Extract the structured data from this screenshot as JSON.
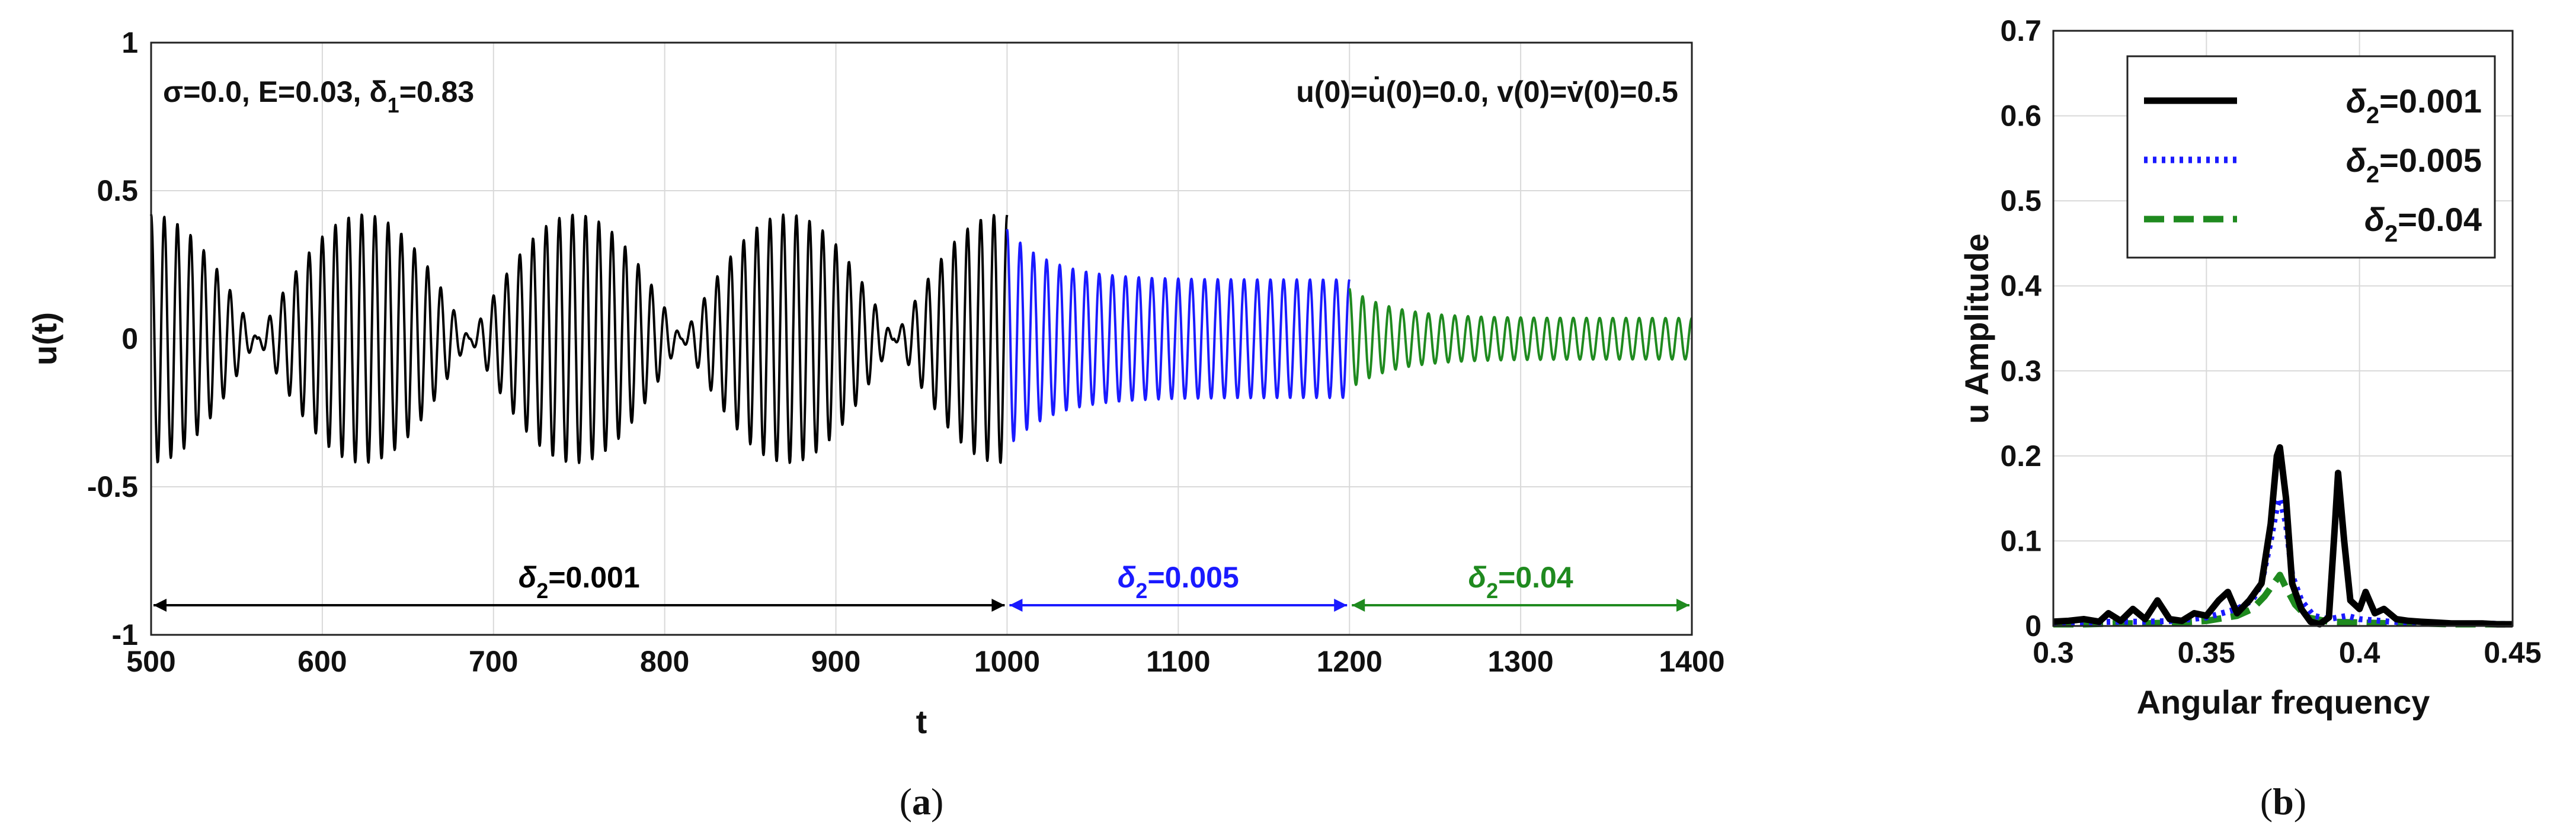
{
  "chart_data": [
    {
      "id": "a",
      "type": "line",
      "caption": "a",
      "xlabel": "t",
      "ylabel": "u(t)",
      "xlim": [
        500,
        1400
      ],
      "ylim": [
        -1,
        1
      ],
      "xticks": [
        "500",
        "600",
        "700",
        "800",
        "900",
        "1000",
        "1100",
        "1200",
        "1300",
        "1400"
      ],
      "yticks": [
        "1",
        "0.5",
        "0",
        "-0.5",
        "-1"
      ],
      "grid": true,
      "annotation_left": {
        "prefix": "σ=0.0, E=0.03, δ",
        "sub": "1",
        "suffix": "=0.83"
      },
      "annotation_right": {
        "text": "u(0)=u̇(0)=0.0, v(0)=v̇(0)=0.5"
      },
      "series": [
        {
          "name": "δ2=0.001",
          "color": "#000000",
          "t_start": 500,
          "t_end": 1000,
          "behavior": "beating",
          "max_amplitude": 0.42,
          "envelope_period": 124,
          "carrier_cycles_per_100": 13
        },
        {
          "name": "δ2=0.005",
          "color": "#1a1aff",
          "t_start": 1000,
          "t_end": 1200,
          "behavior": "decay",
          "start_amplitude": 0.37,
          "steady_amplitude": 0.2,
          "carrier_cycles_per_100": 13
        },
        {
          "name": "δ2=0.04",
          "color": "#1f8a1f",
          "t_start": 1200,
          "t_end": 1400,
          "behavior": "decay",
          "start_amplitude": 0.17,
          "steady_amplitude": 0.07,
          "carrier_cycles_per_100": 13
        }
      ],
      "intervals": [
        {
          "label_prefix": "δ",
          "sub": "2",
          "label_suffix": "=0.001",
          "from": 500,
          "to": 1000,
          "y": -0.9,
          "color": "#000000"
        },
        {
          "label_prefix": "δ",
          "sub": "2",
          "label_suffix": "=0.005",
          "from": 1000,
          "to": 1200,
          "y": -0.9,
          "color": "#1a1aff"
        },
        {
          "label_prefix": "δ",
          "sub": "2",
          "label_suffix": "=0.04",
          "from": 1200,
          "to": 1400,
          "y": -0.9,
          "color": "#1f8a1f"
        }
      ]
    },
    {
      "id": "b",
      "type": "line",
      "caption": "b",
      "xlabel": "Angular frequency",
      "ylabel": "u Amplitude",
      "xlim": [
        0.3,
        0.45
      ],
      "ylim": [
        0,
        0.7
      ],
      "xticks": [
        "0.3",
        "0.35",
        "0.4",
        "0.45"
      ],
      "yticks": [
        "0.7",
        "0.6",
        "0.5",
        "0.4",
        "0.3",
        "0.2",
        "0.1",
        "0"
      ],
      "grid": true,
      "legend_position": "top-right",
      "series": [
        {
          "name_prefix": "δ",
          "sub": "2",
          "name_suffix": "=0.001",
          "color": "#000000",
          "style": "solid",
          "x": [
            0.3,
            0.305,
            0.31,
            0.315,
            0.318,
            0.322,
            0.326,
            0.33,
            0.334,
            0.338,
            0.342,
            0.346,
            0.35,
            0.354,
            0.357,
            0.36,
            0.364,
            0.368,
            0.371,
            0.373,
            0.374,
            0.376,
            0.378,
            0.381,
            0.384,
            0.387,
            0.39,
            0.392,
            0.393,
            0.395,
            0.397,
            0.4,
            0.402,
            0.405,
            0.408,
            0.412,
            0.416,
            0.42,
            0.425,
            0.43,
            0.435,
            0.44,
            0.445,
            0.45
          ],
          "y": [
            0.005,
            0.006,
            0.008,
            0.005,
            0.015,
            0.006,
            0.02,
            0.008,
            0.03,
            0.008,
            0.006,
            0.015,
            0.012,
            0.03,
            0.04,
            0.015,
            0.03,
            0.05,
            0.12,
            0.2,
            0.21,
            0.15,
            0.05,
            0.02,
            0.005,
            0.002,
            0.01,
            0.12,
            0.18,
            0.1,
            0.03,
            0.02,
            0.04,
            0.015,
            0.02,
            0.008,
            0.006,
            0.005,
            0.004,
            0.003,
            0.003,
            0.003,
            0.002,
            0.002
          ]
        },
        {
          "name_prefix": "δ",
          "sub": "2",
          "name_suffix": "=0.005",
          "color": "#1a1aff",
          "style": "dotted",
          "x": [
            0.3,
            0.31,
            0.32,
            0.33,
            0.34,
            0.35,
            0.355,
            0.36,
            0.365,
            0.368,
            0.371,
            0.373,
            0.374,
            0.376,
            0.378,
            0.381,
            0.385,
            0.39,
            0.393,
            0.396,
            0.4,
            0.41,
            0.42,
            0.43,
            0.44,
            0.45
          ],
          "y": [
            0.004,
            0.004,
            0.005,
            0.005,
            0.006,
            0.01,
            0.015,
            0.02,
            0.03,
            0.05,
            0.1,
            0.14,
            0.15,
            0.12,
            0.06,
            0.03,
            0.012,
            0.008,
            0.01,
            0.012,
            0.008,
            0.005,
            0.004,
            0.003,
            0.003,
            0.002
          ]
        },
        {
          "name_prefix": "δ",
          "sub": "2",
          "name_suffix": "=0.04",
          "color": "#1f8a1f",
          "style": "dashed",
          "x": [
            0.3,
            0.31,
            0.32,
            0.33,
            0.34,
            0.35,
            0.36,
            0.365,
            0.369,
            0.372,
            0.374,
            0.376,
            0.379,
            0.383,
            0.39,
            0.4,
            0.41,
            0.42,
            0.43,
            0.44,
            0.45
          ],
          "y": [
            0.002,
            0.002,
            0.003,
            0.003,
            0.004,
            0.006,
            0.012,
            0.02,
            0.035,
            0.05,
            0.06,
            0.045,
            0.025,
            0.01,
            0.005,
            0.004,
            0.003,
            0.003,
            0.002,
            0.002,
            0.002
          ]
        }
      ]
    }
  ]
}
